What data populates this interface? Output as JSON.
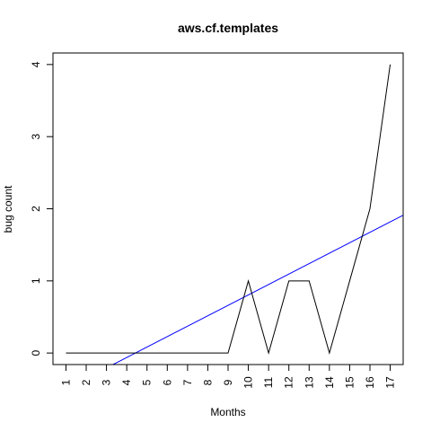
{
  "chart_data": {
    "type": "line",
    "title": "aws.cf.templates",
    "xlabel": "Months",
    "ylabel": "bug count",
    "x": [
      1,
      2,
      3,
      4,
      5,
      6,
      7,
      8,
      9,
      10,
      11,
      12,
      13,
      14,
      15,
      16,
      17
    ],
    "xlim": [
      0.36,
      17.64
    ],
    "ylim": [
      -0.16,
      4.16
    ],
    "yticks": [
      0,
      1,
      2,
      3,
      4
    ],
    "grid": false,
    "legend": "none",
    "series": [
      {
        "color": "#000000",
        "values": [
          0,
          0,
          0,
          0,
          0,
          0,
          0,
          0,
          0,
          1,
          0,
          1,
          1,
          0,
          1,
          2,
          4
        ]
      }
    ],
    "trend": {
      "color": "#0000ff",
      "intercept": -0.64,
      "slope": 0.1446
    }
  },
  "colors": {
    "background": "#ffffff",
    "axes": "#000000",
    "series": "#000000",
    "trend": "#0000ff"
  }
}
